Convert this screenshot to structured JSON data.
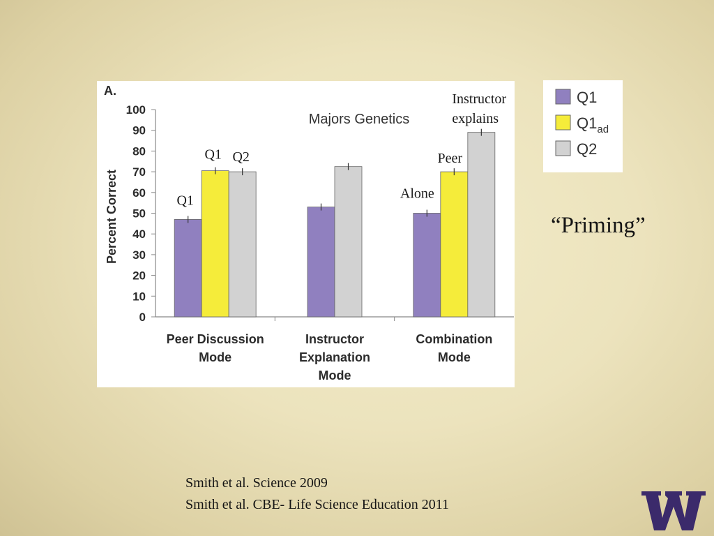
{
  "chart_data": {
    "type": "bar",
    "panel_label": "A.",
    "title": "Majors Genetics",
    "xlabel": "",
    "ylabel": "Percent Correct",
    "ylim": [
      0,
      100
    ],
    "yticks": [
      "0",
      "10",
      "20",
      "30",
      "40",
      "50",
      "60",
      "70",
      "80",
      "90",
      "100"
    ],
    "grid": false,
    "legend_position": "right",
    "categories": [
      [
        "Peer Discussion",
        "Mode"
      ],
      [
        "Instructor",
        "Explanation",
        "Mode"
      ],
      [
        "Combination",
        "Mode"
      ]
    ],
    "series": [
      {
        "name": "Q1",
        "color": "#9080bf",
        "values": [
          47,
          53,
          50
        ]
      },
      {
        "name": "Q1ad",
        "color": "#f5ec3a",
        "values": [
          70.5,
          null,
          70
        ]
      },
      {
        "name": "Q2",
        "color": "#d2d2d2",
        "values": [
          70,
          72.5,
          89
        ]
      }
    ],
    "legend": [
      {
        "main": "Q1",
        "sub": "",
        "color": "#9080bf"
      },
      {
        "main": "Q1",
        "sub": "ad",
        "color": "#f5ec3a"
      },
      {
        "main": "Q2",
        "sub": "",
        "color": "#d2d2d2"
      }
    ],
    "annotations": {
      "peer_q1": "Q1",
      "peer_q1ad": "Q1",
      "peer_q2": "Q2",
      "alone": "Alone",
      "peer": "Peer",
      "instructor_explains": [
        "Instructor",
        "explains"
      ]
    }
  },
  "slide": {
    "heading": "“Priming”",
    "citations": [
      "Smith et al. Science  2009",
      "Smith et al. CBE- Life Science Education 2011"
    ]
  },
  "colors": {
    "logo_purple": "#3b2a6b",
    "axis_text": "#2b2b2b",
    "axis_line": "#888888"
  },
  "logo": {
    "name": "university-w-logo-icon",
    "letter": "W"
  }
}
